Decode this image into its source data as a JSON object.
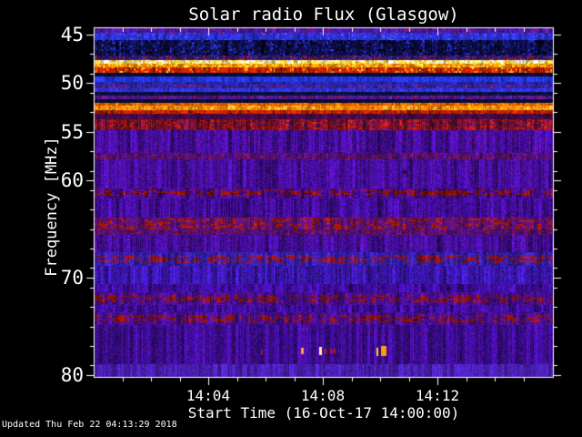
{
  "footer": {
    "updated": "Updated Thu Feb 22 04:13:29 2018"
  },
  "chart_data": {
    "type": "heatmap",
    "title": "Solar radio Flux (Glasgow)",
    "xlabel": "Start Time (16-Oct-17 14:00:00)",
    "ylabel": "Frequency [MHz]",
    "x_unit": "minutes after 14:00",
    "xlim": [
      0,
      16.05
    ],
    "ylim": [
      44.25,
      80.28
    ],
    "y_axis_inverted": true,
    "frame_color": "#ffffff",
    "text_color": "#ffffff",
    "background_color": "#000000",
    "x_ticks": [
      {
        "t": 4,
        "label": "14:04"
      },
      {
        "t": 8,
        "label": "14:08"
      },
      {
        "t": 12,
        "label": "14:12"
      }
    ],
    "x_minor_ticks": [
      1,
      2,
      3,
      5,
      6,
      7,
      9,
      10,
      11,
      13,
      14,
      15
    ],
    "y_ticks": [
      45,
      50,
      55,
      60,
      70,
      80
    ],
    "y_minor_ticks": [
      47,
      49,
      51,
      53,
      57,
      59,
      61,
      63,
      65,
      67,
      69,
      71,
      73,
      75,
      77,
      79
    ],
    "bands": [
      {
        "f_to": 44.78,
        "color": "#4a17a8",
        "speckles": [
          [
            "#a11445",
            0.1,
            2,
            1
          ]
        ]
      },
      {
        "f_to": 45.55,
        "color": "#2b2fd8",
        "grain": 0.2,
        "speckles": [
          [
            "#4f5aef",
            0.1,
            2,
            1
          ]
        ]
      },
      {
        "f_to": 47.18,
        "color": "#0d0d48",
        "streak": 0.8,
        "grain": 0.5,
        "speckles": [
          [
            "#1b2490",
            0.22,
            2,
            2
          ],
          [
            "#05051e",
            0.18,
            3,
            2
          ]
        ]
      },
      {
        "f_to": 47.62,
        "color": "#2a155f",
        "speckles": [
          [
            "#b01020",
            0.16,
            2,
            1
          ],
          [
            "#2836cf",
            0.14,
            2,
            1
          ]
        ]
      },
      {
        "f_to": 47.98,
        "color": "#ffe566",
        "grain": 0.15,
        "speckles": [
          [
            "#fffbe0",
            0.33,
            3,
            2
          ],
          [
            "#ffb300",
            0.18,
            2,
            1
          ]
        ]
      },
      {
        "f_to": 48.34,
        "color": "#ff9b00",
        "grain": 0.2,
        "speckles": [
          [
            "#ffd24a",
            0.22,
            2,
            2
          ],
          [
            "#e34f00",
            0.18,
            2,
            1
          ]
        ]
      },
      {
        "f_to": 48.92,
        "color": "#c62100",
        "streak": 0.5,
        "grain": 0.3,
        "speckles": [
          [
            "#ff7b00",
            0.2,
            2,
            3
          ],
          [
            "#ffd040",
            0.05,
            2,
            2
          ]
        ]
      },
      {
        "f_to": 49.28,
        "color": "#0a0a33",
        "grain": 0.4
      },
      {
        "f_to": 49.84,
        "color": "#2635de",
        "grain": 0.25
      },
      {
        "f_to": 50.14,
        "color": "#1c27b4",
        "grain": 0.25
      },
      {
        "f_to": 50.55,
        "color": "#3b1f9d",
        "speckles": [
          [
            "#a01240",
            0.12,
            2,
            1
          ]
        ]
      },
      {
        "f_to": 50.92,
        "color": "#2635de",
        "grain": 0.25
      },
      {
        "f_to": 51.28,
        "color": "#0d0d3e",
        "grain": 0.4
      },
      {
        "f_to": 51.66,
        "color": "#4c1787",
        "speckles": [
          [
            "#b01535",
            0.14,
            2,
            1
          ],
          [
            "#2a2fd0",
            0.12,
            2,
            1
          ]
        ]
      },
      {
        "f_to": 52.02,
        "color": "#0c0c3a",
        "grain": 0.4
      },
      {
        "f_to": 52.3,
        "color": "#e05500",
        "grain": 0.25,
        "speckles": [
          [
            "#ff8800",
            0.22,
            2,
            2
          ]
        ]
      },
      {
        "f_to": 52.72,
        "color": "#ff8c00",
        "grain": 0.2,
        "speckles": [
          [
            "#ffb733",
            0.22,
            3,
            2
          ],
          [
            "#f26a00",
            0.18,
            2,
            2
          ]
        ]
      },
      {
        "f_to": 53.12,
        "color": "#c32100",
        "streak": 0.5,
        "speckles": [
          [
            "#8c1500",
            0.2,
            3,
            2
          ]
        ]
      },
      {
        "f_to": 53.68,
        "color": "#430a44",
        "grain": 0.3
      },
      {
        "f_to": 54.86,
        "color": "#7c1030",
        "streak": 0.6,
        "speckles": [
          [
            "#b01a08",
            0.26,
            3,
            2
          ],
          [
            "#45104f",
            0.22,
            3,
            2
          ]
        ]
      },
      {
        "f_to": 57.12,
        "color": "#420d98",
        "streak": 0.5,
        "grain": 0.35,
        "speckles": [
          [
            "#6d1260",
            0.05,
            2,
            1
          ]
        ]
      },
      {
        "f_to": 57.8,
        "color": "#53106e",
        "speckles": [
          [
            "#8c1638",
            0.16,
            3,
            1
          ],
          [
            "#420d98",
            0.28,
            3,
            2
          ]
        ]
      },
      {
        "f_to": 60.78,
        "color": "#430d9a",
        "streak": 0.5,
        "grain": 0.35,
        "speckles": [
          [
            "#5c1170",
            0.05,
            3,
            1
          ]
        ]
      },
      {
        "f_to": 61.84,
        "color": "#450d94",
        "streak": 0.5,
        "grain": 0.35,
        "speckles": [
          [
            "#8e1205",
            0.45,
            5,
            2,
            0.2,
            0.75
          ],
          [
            "#2f097a",
            0.25,
            4,
            2,
            0.2,
            0.8
          ]
        ]
      },
      {
        "f_to": 63.84,
        "color": "#430d9a",
        "streak": 0.5,
        "grain": 0.35
      },
      {
        "f_to": 64.98,
        "color": "#55107a",
        "speckles": [
          [
            "#a51804",
            0.3,
            4,
            2
          ],
          [
            "#6e1345",
            0.18,
            3,
            2
          ]
        ]
      },
      {
        "f_to": 65.6,
        "color": "#4c0f72",
        "speckles": [
          [
            "#7c1238",
            0.2,
            3,
            1
          ]
        ]
      },
      {
        "f_to": 67.4,
        "color": "#430d9a",
        "streak": 0.5,
        "grain": 0.35,
        "speckles": [
          [
            "#5c1170",
            0.06,
            3,
            1
          ]
        ]
      },
      {
        "f_to": 68.8,
        "color": "#3420b2",
        "streak": 0.4,
        "grain": 0.3,
        "speckles": [
          [
            "#99131c",
            0.42,
            5,
            2,
            0.2,
            0.8
          ],
          [
            "#2a1ba0",
            0.2,
            3,
            2
          ]
        ]
      },
      {
        "f_to": 70.6,
        "color": "#3a16ab",
        "streak": 0.5,
        "grain": 0.35
      },
      {
        "f_to": 71.52,
        "color": "#400da0",
        "streak": 0.5,
        "grain": 0.35
      },
      {
        "f_to": 72.8,
        "color": "#4a0f90",
        "streak": 0.4,
        "speckles": [
          [
            "#8e1205",
            0.4,
            5,
            2,
            0.2,
            0.8
          ],
          [
            "#380b88",
            0.2,
            3,
            2
          ]
        ]
      },
      {
        "f_to": 73.52,
        "color": "#400d9c",
        "streak": 0.5,
        "grain": 0.35
      },
      {
        "f_to": 74.86,
        "color": "#4a0f90",
        "streak": 0.4,
        "speckles": [
          [
            "#8e1205",
            0.4,
            5,
            2,
            0.2,
            0.8
          ],
          [
            "#380b88",
            0.2,
            3,
            2
          ]
        ]
      },
      {
        "f_to": 78.9,
        "color": "#3b0c90",
        "streak": 0.5,
        "grain": 0.35,
        "speckles": [
          [
            "#53106a",
            0.05,
            3,
            1
          ]
        ]
      },
      {
        "f_to": 80.4,
        "color": "#4a1fb2",
        "grain": 0.25
      }
    ],
    "marks": [
      {
        "t0": 5.83,
        "t1": 5.9,
        "f0": 77.35,
        "f1": 77.9,
        "color": "#8a1733"
      },
      {
        "t0": 7.22,
        "t1": 7.3,
        "f0": 77.2,
        "f1": 77.9,
        "color": "#ffa327"
      },
      {
        "t0": 7.88,
        "t1": 7.96,
        "f0": 77.1,
        "f1": 77.95,
        "color": "#ffe9a8"
      },
      {
        "t0": 8.07,
        "t1": 8.14,
        "f0": 77.25,
        "f1": 77.85,
        "color": "#cc1616"
      },
      {
        "t0": 8.26,
        "t1": 8.32,
        "f0": 77.3,
        "f1": 77.8,
        "color": "#cc1616"
      },
      {
        "t0": 8.36,
        "t1": 8.42,
        "f0": 77.3,
        "f1": 77.8,
        "color": "#c01414"
      },
      {
        "t0": 9.88,
        "t1": 9.95,
        "f0": 77.15,
        "f1": 77.95,
        "color": "#ffcf3d"
      },
      {
        "t0": 10.02,
        "t1": 10.22,
        "f0": 77.05,
        "f1": 78.05,
        "color": "#ff9a14"
      },
      {
        "t0": 10.8,
        "t1": 10.95,
        "f0": 58.9,
        "f1": 59.3,
        "color": "#2a0746"
      }
    ]
  }
}
